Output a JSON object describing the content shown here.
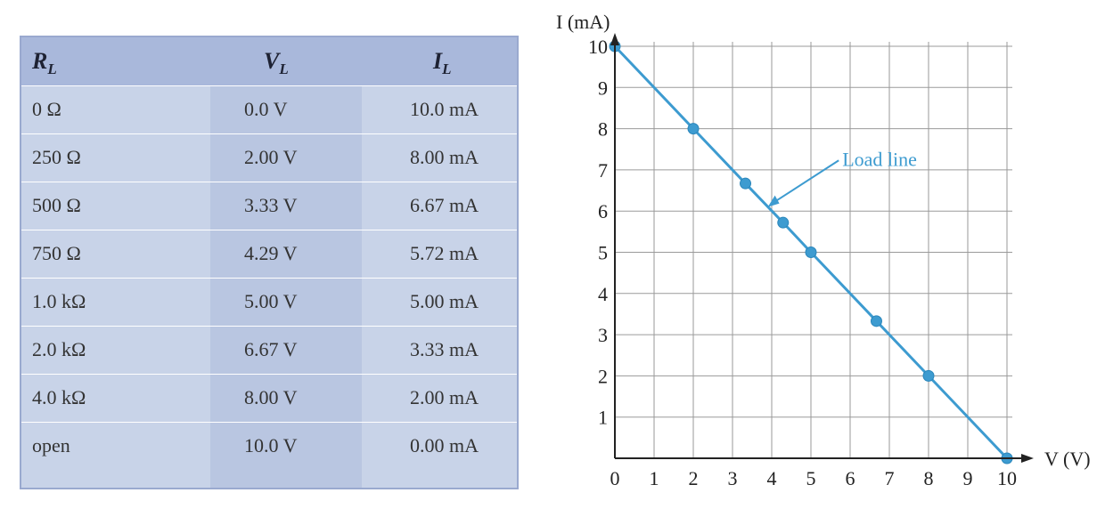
{
  "table": {
    "headers": [
      {
        "main": "R",
        "sub": "L"
      },
      {
        "main": "V",
        "sub": "L"
      },
      {
        "main": "I",
        "sub": "L"
      }
    ],
    "rows": [
      [
        "0 Ω",
        "0.0 V",
        "10.0 mA"
      ],
      [
        "250 Ω",
        "2.00 V",
        "8.00 mA"
      ],
      [
        "500 Ω",
        "3.33 V",
        "6.67 mA"
      ],
      [
        "750 Ω",
        "4.29 V",
        "5.72 mA"
      ],
      [
        "1.0 kΩ",
        "5.00 V",
        "5.00 mA"
      ],
      [
        "2.0 kΩ",
        "6.67 V",
        "3.33 mA"
      ],
      [
        "4.0 kΩ",
        "8.00 V",
        "2.00 mA"
      ],
      [
        "open",
        "10.0 V",
        "0.00 mA"
      ]
    ]
  },
  "chart_data": {
    "type": "line",
    "ylabel": "I (mA)",
    "xlabel": "V (V)",
    "xlim": [
      0,
      10
    ],
    "ylim": [
      0,
      10
    ],
    "x_ticks": [
      "0",
      "1",
      "2",
      "3",
      "4",
      "5",
      "6",
      "7",
      "8",
      "9",
      "10"
    ],
    "y_ticks": [
      "1",
      "2",
      "3",
      "4",
      "5",
      "6",
      "7",
      "8",
      "9",
      "10"
    ],
    "grid": true,
    "series": [
      {
        "x": [
          0,
          2.0,
          3.33,
          4.29,
          5.0,
          6.67,
          8.0,
          10.0
        ],
        "y": [
          10.0,
          8.0,
          6.67,
          5.72,
          5.0,
          3.33,
          2.0,
          0.0
        ]
      }
    ],
    "annotation": {
      "text": "Load line",
      "x": 3.9,
      "y": 6.1
    }
  },
  "colors": {
    "line": "#3d9bd0",
    "marker": "#3d9bd0",
    "grid": "#9a9a9a",
    "axis": "#222222",
    "table_header": "#a9b8db",
    "table_body": "#c8d3e8"
  }
}
